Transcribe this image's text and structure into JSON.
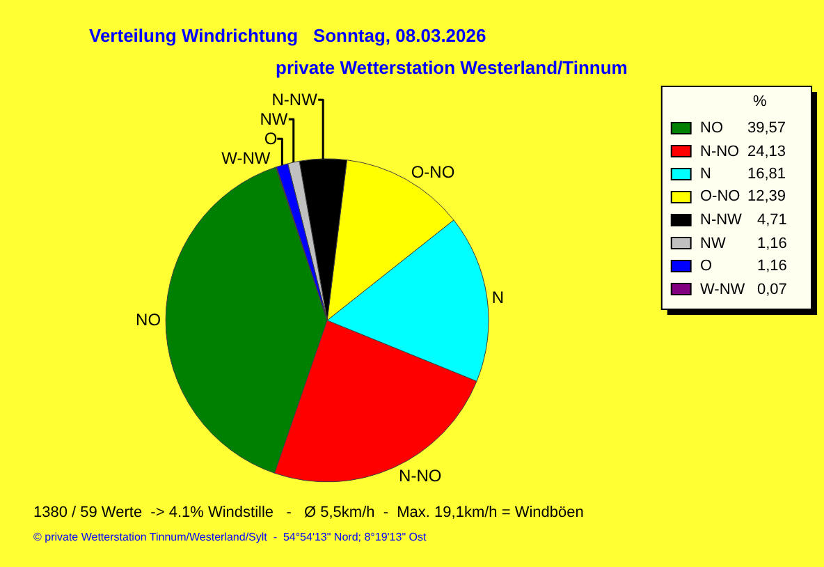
{
  "chart_data": {
    "type": "pie",
    "title": "Verteilung Windrichtung   Sonntag, 08.03.2026",
    "subtitle": "private Wetterstation Westerland/Tinnum",
    "legend_title": "%",
    "categories": [
      "NO",
      "N-NO",
      "N",
      "O-NO",
      "N-NW",
      "NW",
      "O",
      "W-NW"
    ],
    "values": [
      39.57,
      24.13,
      16.81,
      12.39,
      4.71,
      1.16,
      1.16,
      0.07
    ],
    "value_labels": [
      "39,57",
      "24,13",
      "16,81",
      "12,39",
      "4,71",
      "1,16",
      "1,16",
      "0,07"
    ],
    "colors": [
      "#008000",
      "#ff0000",
      "#00ffff",
      "#ffff00",
      "#000000",
      "#c0c0c0",
      "#0000ff",
      "#800080"
    ],
    "legend": "top right",
    "annotations": [
      "1380 / 59 Werte  -> 4.1% Windstille   -   Ø 5,5km/h  -  Max. 19,1km/h = Windböen",
      "© private Wetterstation Tinnum/Westerland/Sylt  -  54°54'13\" Nord; 8°19'13\" Ost"
    ]
  }
}
